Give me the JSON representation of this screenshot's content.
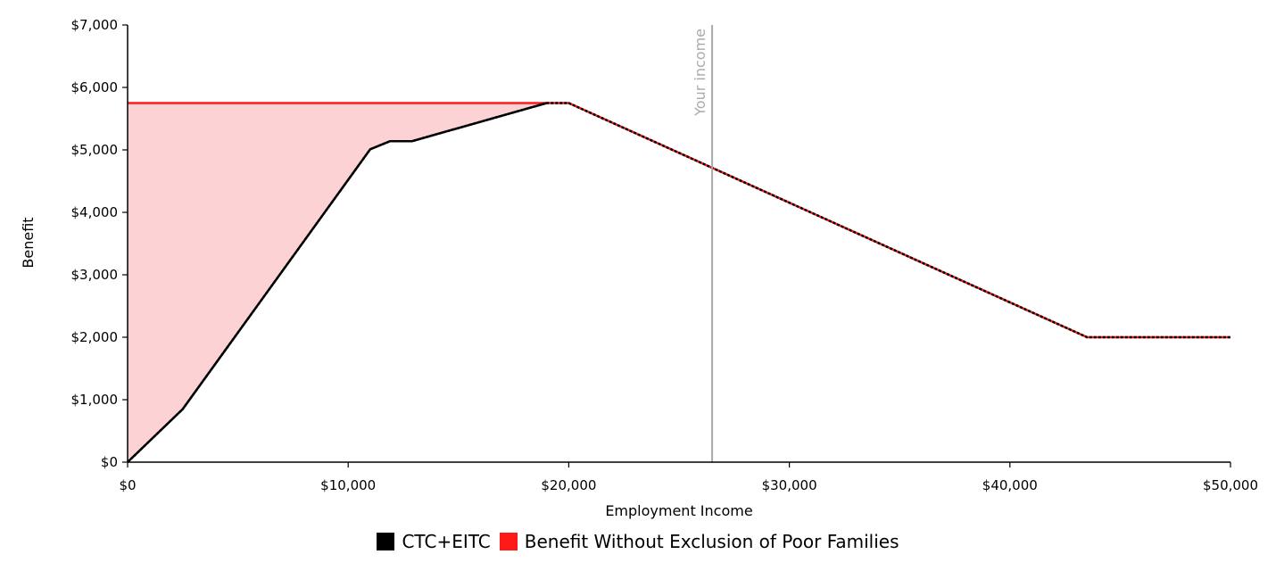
{
  "chart_data": {
    "type": "area",
    "xlabel": "Employment Income",
    "ylabel": "Benefit",
    "xlim": [
      0,
      50000
    ],
    "ylim": [
      0,
      7000
    ],
    "x_ticks": [
      "$0",
      "$10,000",
      "$20,000",
      "$30,000",
      "$40,000",
      "$50,000"
    ],
    "x_tick_values": [
      0,
      10000,
      20000,
      30000,
      40000,
      50000
    ],
    "y_ticks": [
      "$0",
      "$1,000",
      "$2,000",
      "$3,000",
      "$4,000",
      "$5,000",
      "$6,000",
      "$7,000"
    ],
    "y_tick_values": [
      0,
      1000,
      2000,
      3000,
      4000,
      5000,
      6000,
      7000
    ],
    "grid": false,
    "legend_position": "bottom",
    "series": [
      {
        "name": "CTC+EITC",
        "color": "#000000",
        "x": [
          0,
          2500,
          11000,
          11900,
          12900,
          19000,
          20000,
          43500,
          50000
        ],
        "y": [
          0,
          850,
          5010,
          5140,
          5140,
          5750,
          5750,
          2000,
          2000
        ]
      },
      {
        "name": "Benefit Without Exclusion of Poor Families",
        "color": "#ff1a1a",
        "fill_color": "#fdd2d4",
        "x": [
          0,
          20000,
          43500,
          50000
        ],
        "y": [
          5750,
          5750,
          2000,
          2000
        ]
      }
    ],
    "annotations": [
      {
        "type": "vertical-line",
        "x": 26500,
        "label": "Your income",
        "color": "#aaaaaa"
      }
    ]
  }
}
